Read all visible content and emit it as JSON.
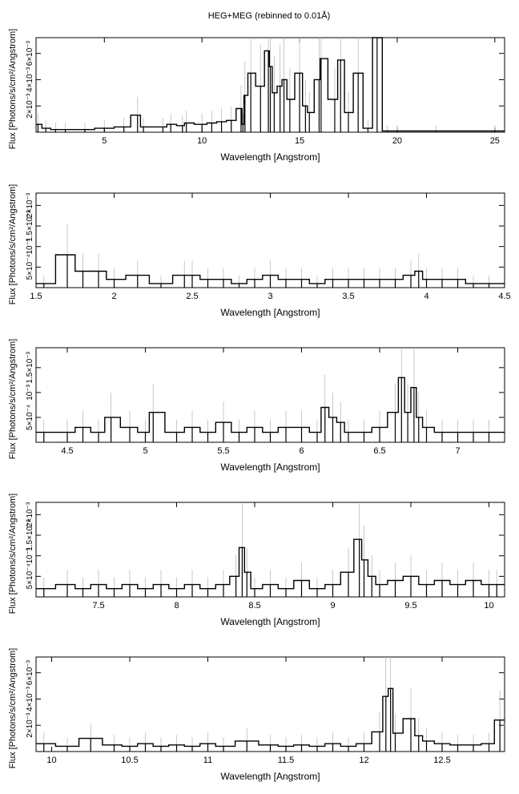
{
  "figure_title": "HEG+MEG (rebinned to 0.01Å)",
  "chart_data": [
    {
      "type": "line",
      "title": "",
      "xlabel": "Wavelength [Angstrom]",
      "ylabel": "Flux [Photons/s/cm²/Angstrom]",
      "xlim": [
        1.5,
        25.5
      ],
      "ylim": [
        0,
        0.0072
      ],
      "x_ticks": [
        5,
        10,
        15,
        20,
        25
      ],
      "x_tick_labels": [
        "5",
        "10",
        "15",
        "20",
        "25"
      ],
      "y_ticks": [
        0.002,
        0.004,
        0.006
      ],
      "y_tick_labels": [
        "2×10⁻³",
        "4×10⁻³",
        "6×10⁻³"
      ],
      "grid": false,
      "series": [
        {
          "x": [
            1.6,
            2.0,
            2.5,
            3.0,
            4.0,
            5.0,
            6.0,
            6.7,
            7.0,
            8.0,
            8.4,
            9.0,
            9.2,
            10.0,
            10.5,
            11.0,
            11.5,
            12.0,
            12.1,
            12.2,
            12.5,
            13.0,
            13.4,
            13.5,
            13.7,
            14.0,
            14.2,
            14.5,
            15.0,
            15.3,
            15.5,
            16.0,
            16.1,
            16.8,
            17.1,
            17.5,
            18.0,
            18.5,
            18.97,
            19.5,
            20.0,
            22.0,
            25.0
          ],
          "y": [
            0.0006,
            0.0003,
            0.0002,
            0.0002,
            0.0002,
            0.0003,
            0.0004,
            0.0013,
            0.0004,
            0.0004,
            0.0006,
            0.0005,
            0.0007,
            0.0006,
            0.0007,
            0.0008,
            0.0009,
            0.0018,
            0.0006,
            0.0028,
            0.0045,
            0.0035,
            0.0062,
            0.005,
            0.003,
            0.0035,
            0.004,
            0.0025,
            0.0045,
            0.002,
            0.0015,
            0.004,
            0.0056,
            0.0025,
            0.0055,
            0.0015,
            0.0045,
            0.0003,
            0.0072,
            0.0001,
            0.0001,
            0.0001,
            0.0001
          ]
        }
      ]
    },
    {
      "type": "line",
      "title": "",
      "xlabel": "Wavelength [Angstrom]",
      "ylabel": "Flux [Photons/s/cm²/Angstrom]",
      "xlim": [
        1.5,
        4.5
      ],
      "ylim": [
        0,
        0.0023
      ],
      "x_ticks": [
        1.5,
        2,
        2.5,
        3,
        3.5,
        4,
        4.5
      ],
      "x_tick_labels": [
        "1.5",
        "2",
        "2.5",
        "3",
        "3.5",
        "4",
        "4.5"
      ],
      "y_ticks": [
        0.0005,
        0.001,
        0.0015,
        0.002
      ],
      "y_tick_labels": [
        "5×10⁻⁴",
        "10⁻³",
        "1.5×10⁻³",
        "2×10⁻³"
      ],
      "grid": false,
      "series": [
        {
          "x": [
            1.55,
            1.7,
            1.8,
            1.9,
            2.0,
            2.15,
            2.3,
            2.45,
            2.5,
            2.6,
            2.7,
            2.8,
            2.9,
            3.0,
            3.1,
            3.2,
            3.3,
            3.4,
            3.5,
            3.6,
            3.7,
            3.8,
            3.9,
            3.95,
            4.0,
            4.1,
            4.2,
            4.3,
            4.4
          ],
          "y": [
            0.0001,
            0.0008,
            0.0004,
            0.0004,
            0.0002,
            0.0003,
            0.0001,
            0.0003,
            0.0003,
            0.0002,
            0.0002,
            0.0001,
            0.0002,
            0.0003,
            0.0002,
            0.0002,
            0.0001,
            0.0002,
            0.0002,
            0.0002,
            0.0002,
            0.0002,
            0.0003,
            0.0004,
            0.0002,
            0.0002,
            0.0002,
            0.0001,
            0.0001
          ]
        }
      ]
    },
    {
      "type": "line",
      "title": "",
      "xlabel": "Wavelength [Angstrom]",
      "ylabel": "Flux [Photons/s/cm²/Angstrom]",
      "xlim": [
        4.3,
        7.3
      ],
      "ylim": [
        0,
        0.0019
      ],
      "x_ticks": [
        4.5,
        5,
        5.5,
        6,
        6.5,
        7
      ],
      "x_tick_labels": [
        "4.5",
        "5",
        "5.5",
        "6",
        "6.5",
        "7"
      ],
      "y_ticks": [
        0.0005,
        0.001,
        0.0015
      ],
      "y_tick_labels": [
        "5×10⁻⁴",
        "10⁻³",
        "1.5×10⁻³"
      ],
      "grid": false,
      "series": [
        {
          "x": [
            4.35,
            4.5,
            4.6,
            4.7,
            4.78,
            4.9,
            5.0,
            5.05,
            5.2,
            5.3,
            5.4,
            5.5,
            5.6,
            5.7,
            5.8,
            5.9,
            6.0,
            6.1,
            6.15,
            6.2,
            6.25,
            6.3,
            6.4,
            6.5,
            6.6,
            6.64,
            6.68,
            6.72,
            6.75,
            6.8,
            6.9,
            7.0,
            7.1,
            7.2
          ],
          "y": [
            0.0002,
            0.0002,
            0.0003,
            0.0002,
            0.0005,
            0.0003,
            0.0002,
            0.0006,
            0.0002,
            0.0003,
            0.0002,
            0.0004,
            0.0002,
            0.0003,
            0.0002,
            0.0003,
            0.0003,
            0.0002,
            0.0007,
            0.0005,
            0.0004,
            0.0002,
            0.0002,
            0.0003,
            0.0006,
            0.0013,
            0.0006,
            0.0011,
            0.0005,
            0.0003,
            0.0002,
            0.0002,
            0.0002,
            0.0002
          ]
        }
      ]
    },
    {
      "type": "line",
      "title": "",
      "xlabel": "Wavelength [Angstrom]",
      "ylabel": "Flux [Photons/s/cm²/Angstrom]",
      "xlim": [
        7.1,
        10.1
      ],
      "ylim": [
        0,
        0.0023
      ],
      "x_ticks": [
        7.5,
        8,
        8.5,
        9,
        9.5,
        10
      ],
      "x_tick_labels": [
        "7.5",
        "8",
        "8.5",
        "9",
        "9.5",
        "10"
      ],
      "y_ticks": [
        0.0005,
        0.001,
        0.0015,
        0.002
      ],
      "y_tick_labels": [
        "5×10⁻⁴",
        "10⁻³",
        "1.5×10⁻³",
        "2×10⁻³"
      ],
      "grid": false,
      "series": [
        {
          "x": [
            7.15,
            7.3,
            7.4,
            7.5,
            7.6,
            7.7,
            7.8,
            7.9,
            8.0,
            8.1,
            8.2,
            8.3,
            8.38,
            8.42,
            8.45,
            8.5,
            8.6,
            8.7,
            8.8,
            8.9,
            9.0,
            9.1,
            9.17,
            9.2,
            9.25,
            9.3,
            9.4,
            9.5,
            9.6,
            9.7,
            9.8,
            9.9,
            10.0,
            10.05
          ],
          "y": [
            0.0002,
            0.0003,
            0.0002,
            0.0003,
            0.0002,
            0.0003,
            0.0002,
            0.0003,
            0.0002,
            0.0003,
            0.0002,
            0.0003,
            0.0005,
            0.0012,
            0.0006,
            0.0002,
            0.0003,
            0.0002,
            0.0004,
            0.0002,
            0.0003,
            0.0006,
            0.0014,
            0.0009,
            0.0005,
            0.0003,
            0.0004,
            0.0005,
            0.0003,
            0.0004,
            0.0003,
            0.0004,
            0.0003,
            0.0003
          ]
        }
      ]
    },
    {
      "type": "line",
      "title": "",
      "xlabel": "Wavelength [Angstrom]",
      "ylabel": "Flux [Photons/s/cm²/Angstrom]",
      "xlim": [
        9.9,
        12.9
      ],
      "ylim": [
        0,
        0.0072
      ],
      "x_ticks": [
        10,
        10.5,
        11,
        11.5,
        12,
        12.5
      ],
      "x_tick_labels": [
        "10",
        "10.5",
        "11",
        "11.5",
        "12",
        "12.5"
      ],
      "y_ticks": [
        0.002,
        0.004,
        0.006
      ],
      "y_tick_labels": [
        "2×10⁻³",
        "4×10⁻³",
        "6×10⁻³"
      ],
      "grid": false,
      "series": [
        {
          "x": [
            9.95,
            10.1,
            10.25,
            10.4,
            10.5,
            10.6,
            10.7,
            10.8,
            10.9,
            11.0,
            11.1,
            11.25,
            11.4,
            11.5,
            11.6,
            11.7,
            11.8,
            11.9,
            12.0,
            12.1,
            12.14,
            12.17,
            12.2,
            12.3,
            12.35,
            12.4,
            12.5,
            12.6,
            12.7,
            12.8,
            12.87
          ],
          "y": [
            0.0006,
            0.0004,
            0.001,
            0.0005,
            0.0004,
            0.0006,
            0.0004,
            0.0005,
            0.0004,
            0.0006,
            0.0004,
            0.0008,
            0.0005,
            0.0004,
            0.0005,
            0.0004,
            0.0006,
            0.0004,
            0.0006,
            0.0015,
            0.0042,
            0.0048,
            0.0014,
            0.0025,
            0.0012,
            0.0008,
            0.0006,
            0.0005,
            0.0005,
            0.0006,
            0.0024
          ]
        }
      ]
    }
  ]
}
